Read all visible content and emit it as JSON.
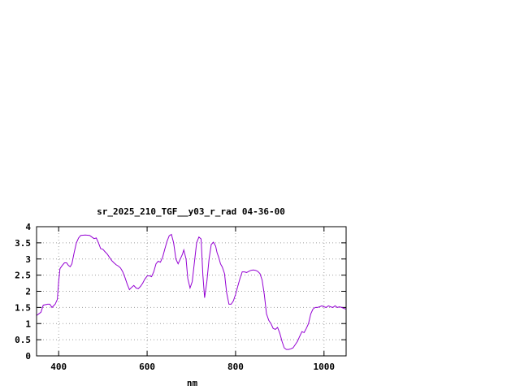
{
  "chart_data": {
    "type": "line",
    "title": "sr_2025_210_TGF__y03_r_rad 04-36-00",
    "xlabel": "nm",
    "ylabel": "",
    "xlim": [
      350,
      1050
    ],
    "ylim": [
      0,
      4
    ],
    "grid": true,
    "xticks": [
      400,
      600,
      800,
      1000
    ],
    "yticks": [
      0,
      0.5,
      1,
      1.5,
      2,
      2.5,
      3,
      3.5,
      4
    ],
    "ytick_labels": [
      "0",
      "0.5",
      "1",
      "1.5",
      "2",
      "2.5",
      "3",
      "3.5",
      "4"
    ],
    "line_color": "#9400d3",
    "series": [
      {
        "x": [
          350,
          360,
          365,
          375,
          380,
          385,
          392,
          397,
          400,
          403,
          408,
          413,
          418,
          422,
          426,
          430,
          435,
          440,
          445,
          450,
          460,
          470,
          475,
          480,
          485,
          490,
          495,
          500,
          505,
          510,
          515,
          520,
          525,
          530,
          535,
          540,
          545,
          550,
          555,
          560,
          565,
          570,
          575,
          580,
          585,
          590,
          595,
          600,
          605,
          610,
          615,
          620,
          625,
          630,
          635,
          640,
          645,
          650,
          655,
          660,
          665,
          670,
          675,
          680,
          683,
          688,
          692,
          697,
          702,
          707,
          712,
          717,
          722,
          726,
          730,
          735,
          740,
          745,
          750,
          755,
          758,
          762,
          766,
          770,
          775,
          780,
          785,
          790,
          795,
          800,
          805,
          810,
          815,
          820,
          825,
          830,
          835,
          840,
          845,
          850,
          855,
          860,
          865,
          870,
          875,
          880,
          885,
          890,
          895,
          900,
          905,
          910,
          915,
          920,
          925,
          930,
          935,
          940,
          945,
          950,
          955,
          960,
          965,
          970,
          975,
          980,
          985,
          990,
          995,
          1000,
          1005,
          1010,
          1015,
          1020,
          1025,
          1030,
          1035,
          1040,
          1045,
          1050
        ],
        "y": [
          1.25,
          1.35,
          1.57,
          1.6,
          1.6,
          1.5,
          1.6,
          1.75,
          2.3,
          2.7,
          2.8,
          2.88,
          2.88,
          2.8,
          2.76,
          2.85,
          3.2,
          3.5,
          3.65,
          3.73,
          3.74,
          3.73,
          3.68,
          3.63,
          3.65,
          3.5,
          3.32,
          3.3,
          3.22,
          3.15,
          3.05,
          2.95,
          2.88,
          2.82,
          2.78,
          2.72,
          2.6,
          2.42,
          2.22,
          2.05,
          2.12,
          2.18,
          2.1,
          2.08,
          2.15,
          2.25,
          2.38,
          2.47,
          2.48,
          2.45,
          2.6,
          2.85,
          2.93,
          2.9,
          3.05,
          3.3,
          3.55,
          3.72,
          3.76,
          3.5,
          3.0,
          2.85,
          3.0,
          3.15,
          3.28,
          3.0,
          2.4,
          2.1,
          2.3,
          2.9,
          3.5,
          3.68,
          3.62,
          2.5,
          1.8,
          2.3,
          3.0,
          3.45,
          3.52,
          3.4,
          3.2,
          3.05,
          2.85,
          2.75,
          2.55,
          1.95,
          1.6,
          1.6,
          1.7,
          1.9,
          2.15,
          2.4,
          2.6,
          2.6,
          2.58,
          2.62,
          2.65,
          2.66,
          2.65,
          2.62,
          2.55,
          2.35,
          1.9,
          1.3,
          1.1,
          1.0,
          0.85,
          0.82,
          0.88,
          0.7,
          0.45,
          0.25,
          0.2,
          0.2,
          0.22,
          0.25,
          0.35,
          0.45,
          0.6,
          0.75,
          0.72,
          0.85,
          1.0,
          1.3,
          1.45,
          1.5,
          1.5,
          1.52,
          1.55,
          1.52,
          1.5,
          1.55,
          1.52,
          1.5,
          1.55,
          1.5,
          1.52,
          1.5,
          1.47,
          1.45
        ]
      }
    ]
  }
}
